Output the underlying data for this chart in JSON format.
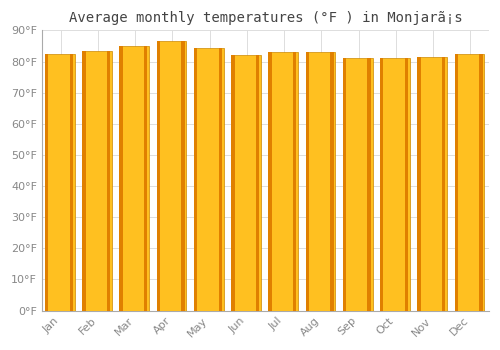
{
  "title": "Average monthly temperatures (°F ) in Monjarã¡s",
  "months": [
    "Jan",
    "Feb",
    "Mar",
    "Apr",
    "May",
    "Jun",
    "Jul",
    "Aug",
    "Sep",
    "Oct",
    "Nov",
    "Dec"
  ],
  "values": [
    82.5,
    83.5,
    85.0,
    86.5,
    84.5,
    82.0,
    83.0,
    83.0,
    81.0,
    81.0,
    81.5,
    82.5
  ],
  "bar_color": "#FFC020",
  "bar_edge_color": "#CC8800",
  "bar_edge_left": "#C87800",
  "ylim": [
    0,
    90
  ],
  "yticks": [
    0,
    10,
    20,
    30,
    40,
    50,
    60,
    70,
    80,
    90
  ],
  "ytick_labels": [
    "0°F",
    "10°F",
    "20°F",
    "30°F",
    "40°F",
    "50°F",
    "60°F",
    "70°F",
    "80°F",
    "90°F"
  ],
  "background_color": "#ffffff",
  "grid_color": "#dddddd",
  "title_fontsize": 10,
  "tick_fontsize": 8,
  "bar_width": 0.75
}
